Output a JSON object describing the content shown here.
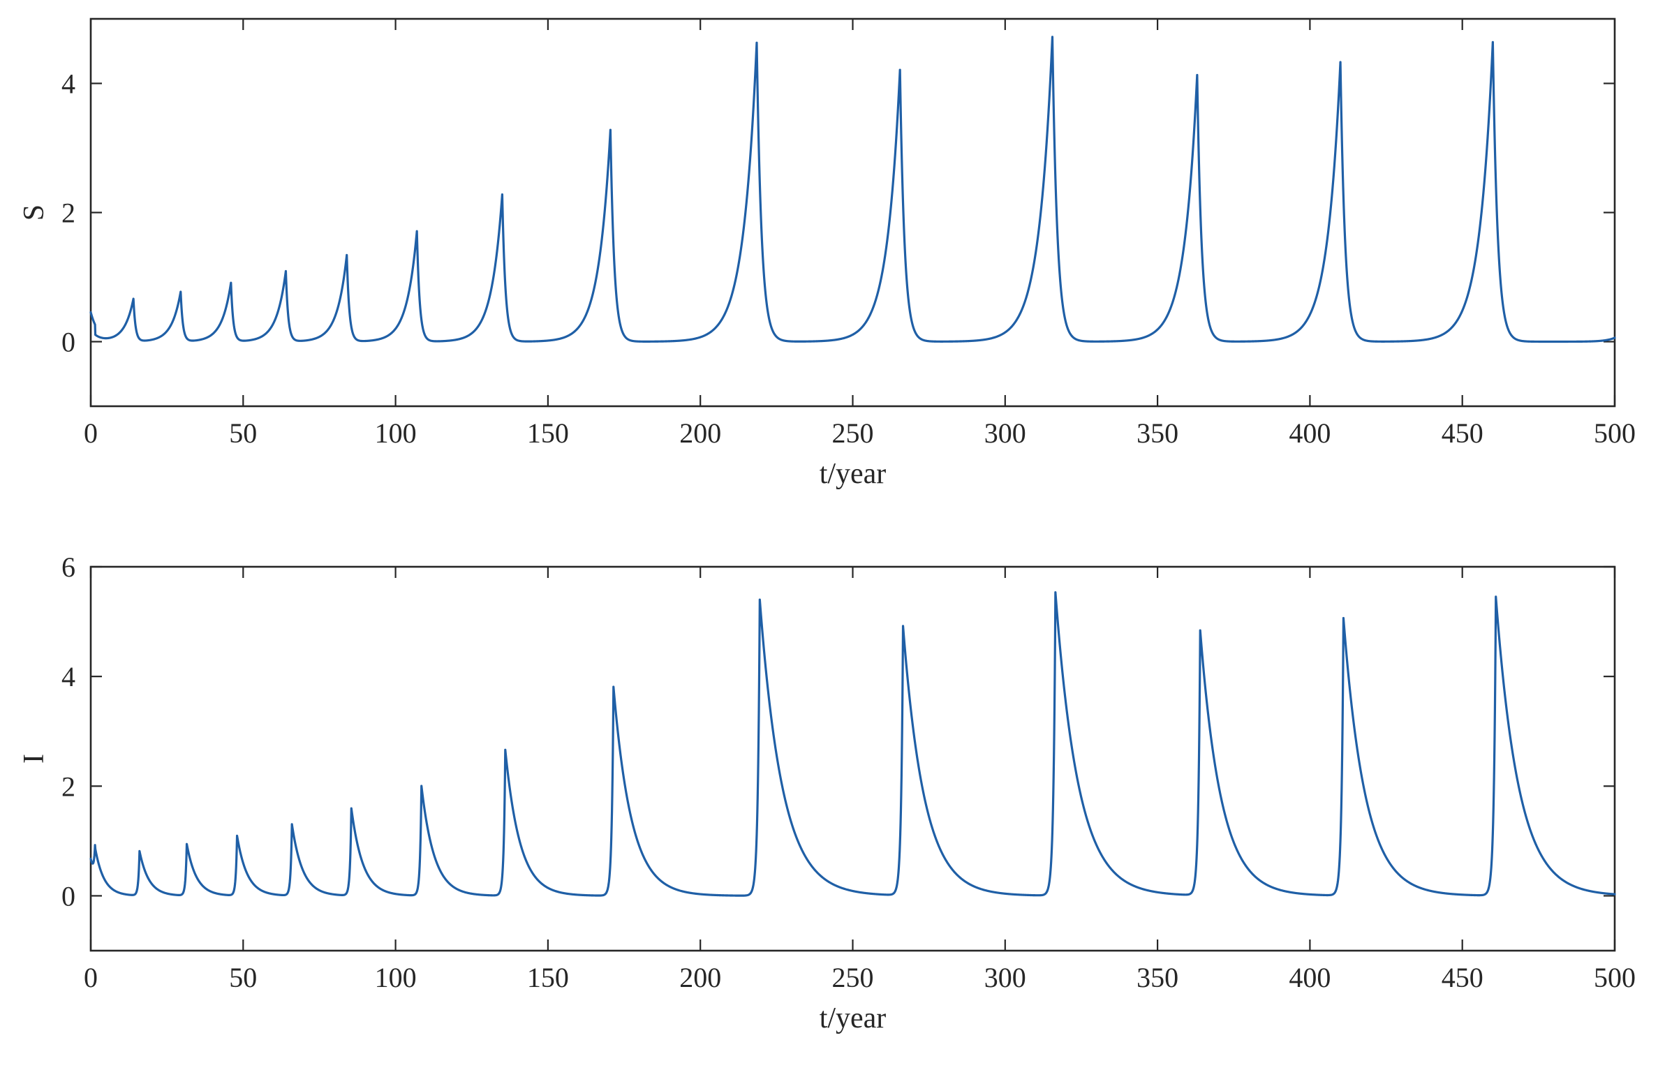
{
  "chart_data": [
    {
      "type": "line",
      "xlabel": "t/year",
      "ylabel": "S",
      "xlim": [
        0,
        500
      ],
      "ylim": [
        -1,
        5
      ],
      "xticks": [
        0,
        50,
        100,
        150,
        200,
        250,
        300,
        350,
        400,
        450,
        500
      ],
      "yticks": [
        0,
        2,
        4
      ],
      "grid": false,
      "color": "#1f5fa6",
      "initial_value": 0.45,
      "peaks": [
        {
          "t": 14.0,
          "value": 0.66
        },
        {
          "t": 29.5,
          "value": 0.77
        },
        {
          "t": 46.0,
          "value": 0.91
        },
        {
          "t": 64.0,
          "value": 1.09
        },
        {
          "t": 84.0,
          "value": 1.34
        },
        {
          "t": 107.0,
          "value": 1.71
        },
        {
          "t": 135.0,
          "value": 2.28
        },
        {
          "t": 170.5,
          "value": 3.28
        },
        {
          "t": 218.5,
          "value": 4.63
        },
        {
          "t": 265.5,
          "value": 4.21
        },
        {
          "t": 315.5,
          "value": 4.72
        },
        {
          "t": 363.0,
          "value": 4.13
        },
        {
          "t": 410.0,
          "value": 4.33
        },
        {
          "t": 460.0,
          "value": 4.64
        }
      ],
      "baseline": 0.0,
      "end_value": 0.06
    },
    {
      "type": "line",
      "xlabel": "t/year",
      "ylabel": "I",
      "xlim": [
        0,
        500
      ],
      "ylim": [
        -1,
        6
      ],
      "xticks": [
        0,
        50,
        100,
        150,
        200,
        250,
        300,
        350,
        400,
        450,
        500
      ],
      "yticks": [
        0,
        2,
        4,
        6
      ],
      "grid": false,
      "color": "#1f5fa6",
      "initial_value": 0.66,
      "peaks": [
        {
          "t": 1.5,
          "value": 0.71
        },
        {
          "t": 16.0,
          "value": 0.81
        },
        {
          "t": 31.5,
          "value": 0.94
        },
        {
          "t": 48.0,
          "value": 1.09
        },
        {
          "t": 66.0,
          "value": 1.3
        },
        {
          "t": 85.5,
          "value": 1.59
        },
        {
          "t": 108.5,
          "value": 2.0
        },
        {
          "t": 136.0,
          "value": 2.66
        },
        {
          "t": 171.5,
          "value": 3.81
        },
        {
          "t": 219.5,
          "value": 5.4
        },
        {
          "t": 266.5,
          "value": 4.91
        },
        {
          "t": 316.5,
          "value": 5.53
        },
        {
          "t": 364.0,
          "value": 4.83
        },
        {
          "t": 411.0,
          "value": 5.06
        },
        {
          "t": 461.0,
          "value": 5.45
        }
      ],
      "baseline": 0.0,
      "end_value": 0.0
    }
  ]
}
